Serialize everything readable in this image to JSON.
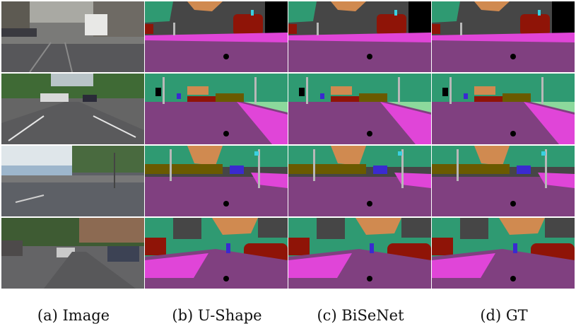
{
  "figure": {
    "columns": [
      {
        "caption": "(a) Image",
        "kind": "photo"
      },
      {
        "caption": "(b) U-Shape",
        "kind": "segmentation"
      },
      {
        "caption": "(c) BiSeNet",
        "kind": "segmentation"
      },
      {
        "caption": "(d) GT",
        "kind": "segmentation"
      }
    ],
    "rows": 4
  },
  "palette": {
    "road": "#804080",
    "sidewalk": "#e045d8",
    "building": "#464646",
    "vegetation": "#2f9a72",
    "terrain": "#8cd99c",
    "sky": "#2d8dbb",
    "car": "#8f1407",
    "truck": "#6a5a00",
    "pole": "#b8b8b8",
    "sign": "#c0c000",
    "person": "#3a2ad0",
    "bicycle": "#3ad0e0",
    "wall": "#d08a50",
    "ego": "#000000"
  }
}
